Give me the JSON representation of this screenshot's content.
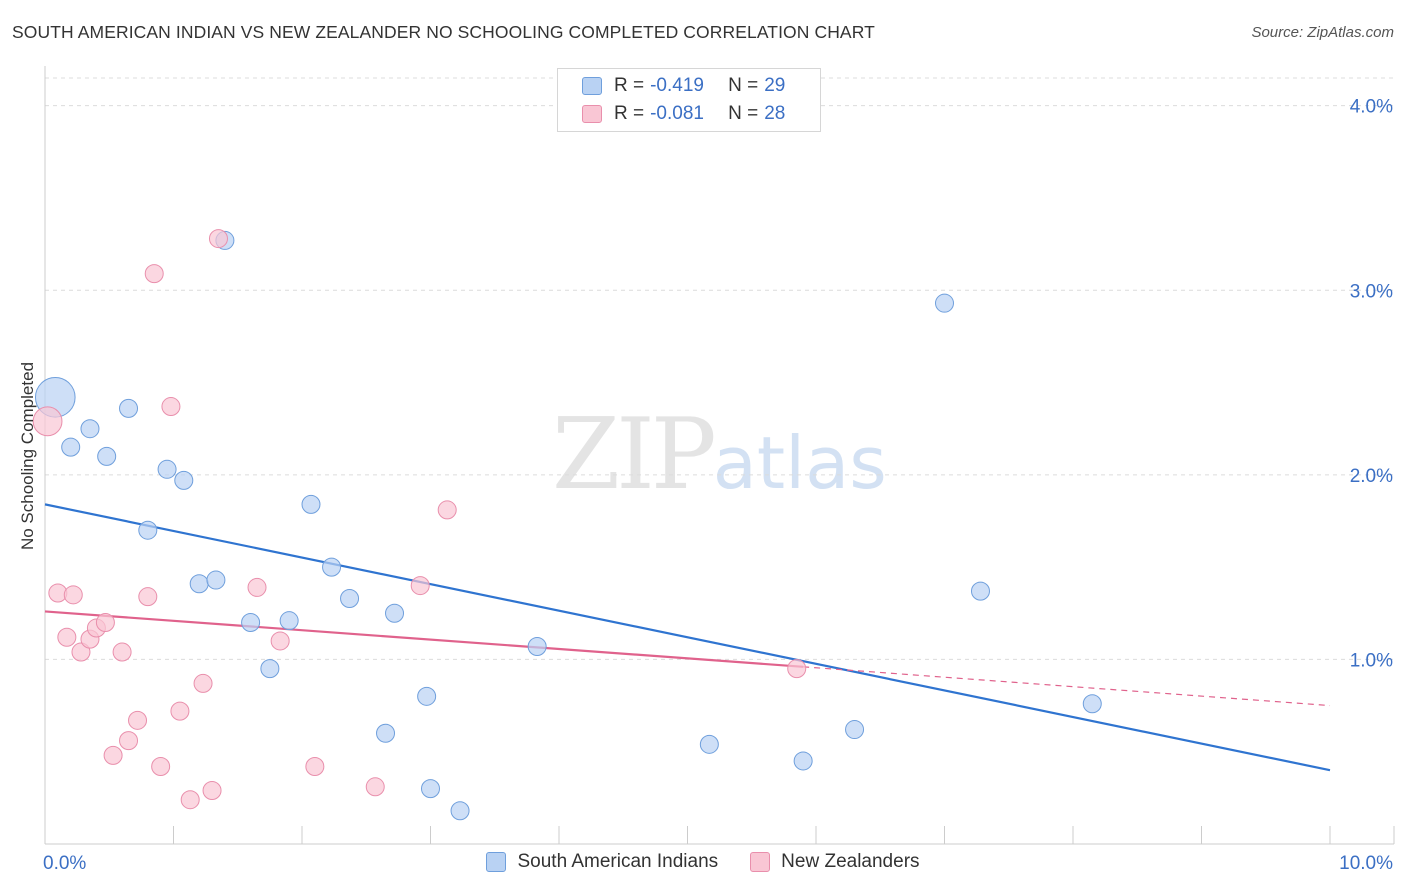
{
  "title": "SOUTH AMERICAN INDIAN VS NEW ZEALANDER NO SCHOOLING COMPLETED CORRELATION CHART",
  "source": "Source: ZipAtlas.com",
  "watermark": {
    "zip": "ZIP",
    "atlas": "atlas"
  },
  "colors": {
    "blue_fill": "#b9d2f3",
    "blue_stroke": "#6f9fdc",
    "blue_line": "#2f74d0",
    "pink_fill": "#f9c6d4",
    "pink_stroke": "#e98fac",
    "pink_line": "#e0628c",
    "value_text": "#3b6fc4"
  },
  "legend": {
    "r_label": "R =",
    "n_label": "N =",
    "blue": {
      "r": "-0.419",
      "n": "29"
    },
    "pink": {
      "r": "-0.081",
      "n": "28"
    }
  },
  "bottom_legend": {
    "blue": "South American Indians",
    "pink": "New Zealanders"
  },
  "chart_data": {
    "type": "scatter",
    "title": "SOUTH AMERICAN INDIAN VS NEW ZEALANDER NO SCHOOLING COMPLETED CORRELATION CHART",
    "xlabel": "",
    "ylabel": "No Schooling Completed",
    "xlim": [
      0,
      10
    ],
    "ylim": [
      0,
      4.15
    ],
    "x_tick_labels": [
      "0.0%",
      "10.0%"
    ],
    "y_tick_labels": [
      "1.0%",
      "2.0%",
      "3.0%",
      "4.0%"
    ],
    "y_ticks": [
      1,
      2,
      3,
      4
    ],
    "grid": true,
    "series": [
      {
        "name": "South American Indians",
        "color": "blue",
        "points": [
          [
            0.08,
            2.42,
            2.2
          ],
          [
            0.2,
            2.15,
            1
          ],
          [
            0.35,
            2.25,
            1
          ],
          [
            0.48,
            2.1,
            1
          ],
          [
            0.65,
            2.36,
            1
          ],
          [
            0.8,
            1.7,
            1
          ],
          [
            0.95,
            2.03,
            1
          ],
          [
            1.08,
            1.97,
            1
          ],
          [
            1.2,
            1.41,
            1
          ],
          [
            1.33,
            1.43,
            1
          ],
          [
            1.4,
            3.27,
            1
          ],
          [
            1.6,
            1.2,
            1
          ],
          [
            1.75,
            0.95,
            1
          ],
          [
            1.9,
            1.21,
            1
          ],
          [
            2.07,
            1.84,
            1
          ],
          [
            2.23,
            1.5,
            1
          ],
          [
            2.37,
            1.33,
            1
          ],
          [
            2.65,
            0.6,
            1
          ],
          [
            2.72,
            1.25,
            1
          ],
          [
            2.97,
            0.8,
            1
          ],
          [
            3.0,
            0.3,
            1
          ],
          [
            3.23,
            0.18,
            1
          ],
          [
            3.83,
            1.07,
            1
          ],
          [
            5.17,
            0.54,
            1
          ],
          [
            5.9,
            0.45,
            1
          ],
          [
            6.3,
            0.62,
            1
          ],
          [
            7.0,
            2.93,
            1
          ],
          [
            7.28,
            1.37,
            1
          ],
          [
            8.15,
            0.76,
            1
          ]
        ],
        "trend": {
          "x": [
            0,
            10
          ],
          "y": [
            1.84,
            0.4
          ]
        }
      },
      {
        "name": "New Zealanders",
        "color": "pink",
        "points": [
          [
            0.02,
            2.29,
            1.6
          ],
          [
            0.1,
            1.36,
            1
          ],
          [
            0.17,
            1.12,
            1
          ],
          [
            0.22,
            1.35,
            1
          ],
          [
            0.28,
            1.04,
            1
          ],
          [
            0.35,
            1.11,
            1
          ],
          [
            0.4,
            1.17,
            1
          ],
          [
            0.47,
            1.2,
            1
          ],
          [
            0.53,
            0.48,
            1
          ],
          [
            0.6,
            1.04,
            1
          ],
          [
            0.65,
            0.56,
            1
          ],
          [
            0.72,
            0.67,
            1
          ],
          [
            0.8,
            1.34,
            1
          ],
          [
            0.85,
            3.09,
            1
          ],
          [
            0.9,
            0.42,
            1
          ],
          [
            0.98,
            2.37,
            1
          ],
          [
            1.05,
            0.72,
            1
          ],
          [
            1.13,
            0.24,
            1
          ],
          [
            1.23,
            0.87,
            1
          ],
          [
            1.3,
            0.29,
            1
          ],
          [
            1.35,
            3.28,
            1
          ],
          [
            1.65,
            1.39,
            1
          ],
          [
            1.83,
            1.1,
            1
          ],
          [
            2.1,
            0.42,
            1
          ],
          [
            2.57,
            0.31,
            1
          ],
          [
            2.92,
            1.4,
            1
          ],
          [
            3.13,
            1.81,
            1
          ],
          [
            5.85,
            0.95,
            1
          ]
        ],
        "trend": {
          "x": [
            0,
            5.9
          ],
          "y": [
            1.26,
            0.96
          ]
        },
        "trend_dashed": {
          "x": [
            5.9,
            10
          ],
          "y": [
            0.96,
            0.75
          ]
        }
      }
    ]
  }
}
